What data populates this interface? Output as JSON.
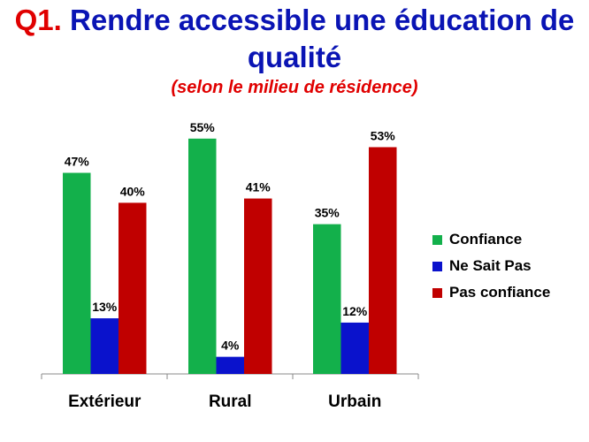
{
  "header": {
    "title_prefix": "Q1.",
    "title_main": " Rendre accessible une éducation de qualité",
    "subtitle": "(selon le milieu de résidence)"
  },
  "chart_data": {
    "type": "bar",
    "categories": [
      "Extérieur",
      "Rural",
      "Urbain"
    ],
    "series": [
      {
        "name": "Confiance",
        "values": [
          47,
          55,
          35
        ],
        "labels": [
          "47%",
          "55%",
          "35%"
        ],
        "color": "#13b04b"
      },
      {
        "name": "Ne Sait Pas",
        "values": [
          13,
          4,
          12
        ],
        "labels": [
          "13%",
          "4%",
          "12%"
        ],
        "color": "#0a12cc"
      },
      {
        "name": "Pas confiance",
        "values": [
          40,
          41,
          53
        ],
        "labels": [
          "40%",
          "41%",
          "53%"
        ],
        "color": "#c00000"
      }
    ],
    "ylim": [
      0,
      60
    ],
    "grid": false,
    "legend_position": "right"
  }
}
